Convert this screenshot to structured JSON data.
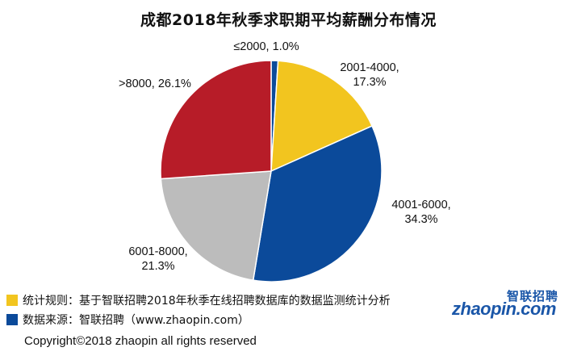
{
  "colors": {
    "yellow": "#f2c51f",
    "blue": "#0b4a9a",
    "gray": "#bcbcbc",
    "red": "#b71c28"
  },
  "chart_data": {
    "type": "pie",
    "title": "成都2018年秋季求职期平均薪酬分布情况",
    "slices": [
      {
        "label": "≤2000, 1.0%",
        "category": "≤2000",
        "value": 1.0,
        "color": "#0b4a9a"
      },
      {
        "label": "2001-4000, 17.3%",
        "category": "2001-4000",
        "value": 17.3,
        "color": "#f2c51f"
      },
      {
        "label": "4001-6000, 34.3%",
        "category": "4001-6000",
        "value": 34.3,
        "color": "#0b4a9a"
      },
      {
        "label": "6001-8000, 21.3%",
        "category": "6001-8000",
        "value": 21.3,
        "color": "#bcbcbc"
      },
      {
        "label": ">8000, 26.1%",
        "category": ">8000",
        "value": 26.1,
        "color": "#b71c28"
      }
    ]
  },
  "footnotes": {
    "rule": "统计规则：基于智联招聘2018年秋季在线招聘数据库的数据监测统计分析",
    "source": "数据来源：智联招聘（www.zhaopin.com）"
  },
  "copyright": "Copyright©2018 zhaopin all rights reserved",
  "logo": {
    "cn": "智联招聘",
    "en": "zhaopin.com"
  }
}
